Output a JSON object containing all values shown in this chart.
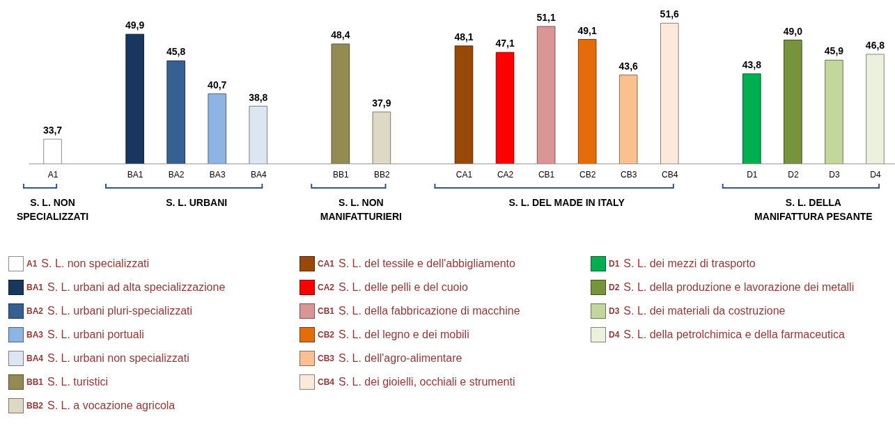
{
  "chart_data": {
    "type": "bar",
    "stacked": true,
    "tick_labels": "x",
    "legend": "bottom",
    "categories": [
      "A1",
      null,
      "BA1",
      "BA2",
      "BA3",
      "BA4",
      null,
      "BB1",
      "BB2",
      null,
      "CA1",
      "CA2",
      "CB1",
      "CB2",
      "CB3",
      "CB4",
      null,
      "D1",
      "D2",
      "D3",
      "D4"
    ],
    "annotations": [
      "S. L. NON\nSPECIALIZZATI",
      "S. L. URBANI",
      "S. L. NON\nMANIFATTURIERI",
      "S. L. DEL MADE IN ITALY",
      "S. L. DELLA\nMANIFATTURA PESANTE"
    ],
    "series": [
      {
        "name": "S. L. non specializzati",
        "color": "#ffffff",
        "values": [
          33.7,
          null,
          null,
          null,
          null,
          null,
          null,
          null,
          null,
          null,
          null,
          null,
          null,
          null,
          null,
          null,
          null,
          null,
          null,
          null,
          null
        ],
        "value_labels": [
          "33,7",
          null,
          null,
          null,
          null,
          null,
          null,
          null,
          null,
          null,
          null,
          null,
          null,
          null,
          null,
          null,
          null,
          null,
          null,
          null,
          null
        ]
      },
      {
        "name": "S. L. urbani ad alta specializzazione",
        "color": "#17375e",
        "values": [
          null,
          null,
          49.9,
          null,
          null,
          null,
          null,
          null,
          null,
          null,
          null,
          null,
          null,
          null,
          null,
          null,
          null,
          null,
          null,
          null,
          null
        ],
        "value_labels": [
          null,
          null,
          "49,9",
          null,
          null,
          null,
          null,
          null,
          null,
          null,
          null,
          null,
          null,
          null,
          null,
          null,
          null,
          null,
          null,
          null,
          null
        ]
      },
      {
        "name": "S. L. urbani pluri-specializzati",
        "color": "#376092",
        "values": [
          null,
          null,
          null,
          45.8,
          null,
          null,
          null,
          null,
          null,
          null,
          null,
          null,
          null,
          null,
          null,
          null,
          null,
          null,
          null,
          null,
          null
        ],
        "value_labels": [
          null,
          null,
          null,
          "45,8",
          null,
          null,
          null,
          null,
          null,
          null,
          null,
          null,
          null,
          null,
          null,
          null,
          null,
          null,
          null,
          null,
          null
        ]
      },
      {
        "name": "S. L. urbani portuali",
        "color": "#8db4e2",
        "values": [
          null,
          null,
          null,
          null,
          40.7,
          null,
          null,
          null,
          null,
          null,
          null,
          null,
          null,
          null,
          null,
          null,
          null,
          null,
          null,
          null,
          null
        ],
        "value_labels": [
          null,
          null,
          null,
          null,
          "40,7",
          null,
          null,
          null,
          null,
          null,
          null,
          null,
          null,
          null,
          null,
          null,
          null,
          null,
          null,
          null,
          null
        ]
      },
      {
        "name": "S. L. urbani non specializzati",
        "color": "#dce6f2",
        "values": [
          null,
          null,
          null,
          null,
          null,
          38.8,
          null,
          null,
          null,
          null,
          null,
          null,
          null,
          null,
          null,
          null,
          null,
          null,
          null,
          null,
          null
        ],
        "value_labels": [
          null,
          null,
          null,
          null,
          null,
          "38,8",
          null,
          null,
          null,
          null,
          null,
          null,
          null,
          null,
          null,
          null,
          null,
          null,
          null,
          null,
          null
        ]
      },
      {
        "name": "S. L. turistici",
        "color": "#948a54",
        "values": [
          null,
          null,
          null,
          null,
          null,
          null,
          null,
          48.4,
          null,
          null,
          null,
          null,
          null,
          null,
          null,
          null,
          null,
          null,
          null,
          null,
          null
        ],
        "value_labels": [
          null,
          null,
          null,
          null,
          null,
          null,
          null,
          "48,4",
          null,
          null,
          null,
          null,
          null,
          null,
          null,
          null,
          null,
          null,
          null,
          null,
          null
        ]
      },
      {
        "name": "S. L. a vocazione agricola",
        "color": "#ddd9c4",
        "values": [
          null,
          null,
          null,
          null,
          null,
          null,
          null,
          null,
          37.9,
          null,
          null,
          null,
          null,
          null,
          null,
          null,
          null,
          null,
          null,
          null,
          null
        ],
        "value_labels": [
          null,
          null,
          null,
          null,
          null,
          null,
          null,
          null,
          "37,9",
          null,
          null,
          null,
          null,
          null,
          null,
          null,
          null,
          null,
          null,
          null,
          null
        ]
      },
      {
        "name": "S. L. del tessile e dell'abbigliamento",
        "color": "#984807",
        "values": [
          null,
          null,
          null,
          null,
          null,
          null,
          null,
          null,
          null,
          null,
          48.1,
          null,
          null,
          null,
          null,
          null,
          null,
          null,
          null,
          null,
          null
        ],
        "value_labels": [
          null,
          null,
          null,
          null,
          null,
          null,
          null,
          null,
          null,
          null,
          "48,1",
          null,
          null,
          null,
          null,
          null,
          null,
          null,
          null,
          null,
          null
        ]
      },
      {
        "name": "S. L. delle pelli e del cuoio",
        "color": "#ff0000",
        "values": [
          null,
          null,
          null,
          null,
          null,
          null,
          null,
          null,
          null,
          null,
          null,
          47.1,
          null,
          null,
          null,
          null,
          null,
          null,
          null,
          null,
          null
        ],
        "value_labels": [
          null,
          null,
          null,
          null,
          null,
          null,
          null,
          null,
          null,
          null,
          null,
          "47,1",
          null,
          null,
          null,
          null,
          null,
          null,
          null,
          null,
          null
        ]
      },
      {
        "name": "S. L. della fabbricazione di macchine",
        "color": "#da9694",
        "values": [
          null,
          null,
          null,
          null,
          null,
          null,
          null,
          null,
          null,
          null,
          null,
          null,
          51.1,
          null,
          null,
          null,
          null,
          null,
          null,
          null,
          null
        ],
        "value_labels": [
          null,
          null,
          null,
          null,
          null,
          null,
          null,
          null,
          null,
          null,
          null,
          null,
          "51,1",
          null,
          null,
          null,
          null,
          null,
          null,
          null,
          null
        ]
      },
      {
        "name": "S. L. del legno e dei mobili",
        "color": "#e46c0a",
        "values": [
          null,
          null,
          null,
          null,
          null,
          null,
          null,
          null,
          null,
          null,
          null,
          null,
          null,
          49.1,
          null,
          null,
          null,
          null,
          null,
          null,
          null
        ],
        "value_labels": [
          null,
          null,
          null,
          null,
          null,
          null,
          null,
          null,
          null,
          null,
          null,
          null,
          null,
          "49,1",
          null,
          null,
          null,
          null,
          null,
          null,
          null
        ]
      },
      {
        "name": "S. L. dell'agro-alimentare",
        "color": "#fac090",
        "values": [
          null,
          null,
          null,
          null,
          null,
          null,
          null,
          null,
          null,
          null,
          null,
          null,
          null,
          null,
          43.6,
          null,
          null,
          null,
          null,
          null,
          null
        ],
        "value_labels": [
          null,
          null,
          null,
          null,
          null,
          null,
          null,
          null,
          null,
          null,
          null,
          null,
          null,
          null,
          "43,6",
          null,
          null,
          null,
          null,
          null,
          null
        ]
      },
      {
        "name": "S. L. dei gioielli, occhiali e strumenti",
        "color": "#fde9d9",
        "values": [
          null,
          null,
          null,
          null,
          null,
          null,
          null,
          null,
          null,
          null,
          null,
          null,
          null,
          null,
          null,
          51.6,
          null,
          null,
          null,
          null,
          null
        ],
        "value_labels": [
          null,
          null,
          null,
          null,
          null,
          null,
          null,
          null,
          null,
          null,
          null,
          null,
          null,
          null,
          null,
          "51,6",
          null,
          null,
          null,
          null,
          null
        ]
      },
      {
        "name": "S. L. dei mezzi di trasporto",
        "color": "#00b050",
        "values": [
          null,
          null,
          null,
          null,
          null,
          null,
          null,
          null,
          null,
          null,
          null,
          null,
          null,
          null,
          null,
          null,
          null,
          43.8,
          null,
          null,
          null
        ],
        "value_labels": [
          null,
          null,
          null,
          null,
          null,
          null,
          null,
          null,
          null,
          null,
          null,
          null,
          null,
          null,
          null,
          null,
          null,
          "43,8",
          null,
          null,
          null
        ]
      },
      {
        "name": "S. L. della produzione e lavorazione dei metalli",
        "color": "#77933c",
        "values": [
          null,
          null,
          null,
          null,
          null,
          null,
          null,
          null,
          null,
          null,
          null,
          null,
          null,
          null,
          null,
          null,
          null,
          null,
          49.0,
          null,
          null
        ],
        "value_labels": [
          null,
          null,
          null,
          null,
          null,
          null,
          null,
          null,
          null,
          null,
          null,
          null,
          null,
          null,
          null,
          null,
          null,
          null,
          "49,0",
          null,
          null
        ]
      },
      {
        "name": "S. L. dei materiali da costruzione",
        "color": "#c3d69b",
        "values": [
          null,
          null,
          null,
          null,
          null,
          null,
          null,
          null,
          null,
          null,
          null,
          null,
          null,
          null,
          null,
          null,
          null,
          null,
          null,
          45.9,
          null
        ],
        "value_labels": [
          null,
          null,
          null,
          null,
          null,
          null,
          null,
          null,
          null,
          null,
          null,
          null,
          null,
          null,
          null,
          null,
          null,
          null,
          null,
          "45,9",
          null
        ]
      },
      {
        "name": "S. L. della petrolchimica e della farmaceutica",
        "color": "#ebf1de",
        "values": [
          null,
          null,
          null,
          null,
          null,
          null,
          null,
          null,
          null,
          null,
          null,
          null,
          null,
          null,
          null,
          null,
          null,
          null,
          null,
          null,
          46.8
        ],
        "value_labels": [
          null,
          null,
          null,
          null,
          null,
          null,
          null,
          null,
          null,
          null,
          null,
          null,
          null,
          null,
          null,
          null,
          null,
          null,
          null,
          null,
          "46,8"
        ]
      }
    ]
  }
}
